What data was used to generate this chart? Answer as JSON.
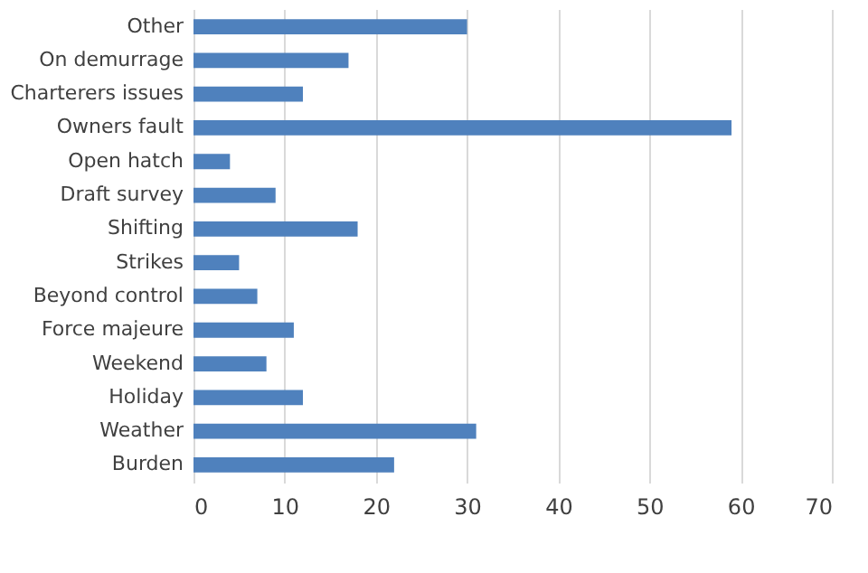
{
  "chart_data": {
    "type": "bar",
    "orientation": "horizontal",
    "categories": [
      "Other",
      "On demurrage",
      "Charterers issues",
      "Owners fault",
      "Open hatch",
      "Draft survey",
      "Shifting",
      "Strikes",
      "Beyond control",
      "Force majeure",
      "Weekend",
      "Holiday",
      "Weather",
      "Burden"
    ],
    "values": [
      30,
      17,
      12,
      59,
      4,
      9,
      18,
      5,
      7,
      11,
      8,
      12,
      31,
      22
    ],
    "color": "#4f81bd",
    "xlim": [
      0,
      70
    ],
    "xticks": [
      0,
      10,
      20,
      30,
      40,
      50,
      60,
      70
    ],
    "grid": "x"
  }
}
